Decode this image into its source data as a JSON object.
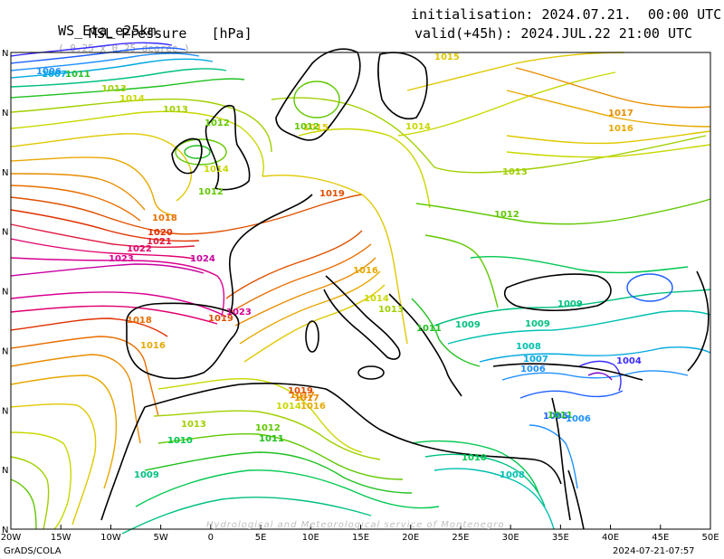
{
  "header": {
    "model": "WS_Eta_e25km",
    "resolution": "( 0.25 x 0.25 degree )",
    "variable": "MSL Pressure   [hPa]",
    "init": "initialisation: 2024.07.21.  00:00 UTC",
    "valid": "valid(+45h): 2024.JUL.22 21:00 UTC"
  },
  "axes": {
    "lon_labels": [
      "20W",
      "15W",
      "10W",
      "5W",
      "0",
      "5E",
      "10E",
      "15E",
      "20E",
      "25E",
      "30E",
      "35E",
      "40E",
      "45E",
      "50E"
    ],
    "lat_labels": [
      "N",
      "N",
      "N",
      "N",
      "N",
      "N",
      "N",
      "N",
      "N"
    ]
  },
  "footer": {
    "left": "GrADS/COLA",
    "right": "2024-07-21-07:57",
    "credit": "Hydrological and Meteorological service of Montenegro"
  },
  "colors": {
    "c1003": "#7a00c8",
    "c1004": "#3b2cff",
    "c1005": "#2060ff",
    "c1006": "#1e90ff",
    "c1007": "#00a8e0",
    "c1008": "#00c0b0",
    "c1009": "#00c080",
    "c1010": "#00c850",
    "c1011": "#20c020",
    "c1012": "#60c800",
    "c1013": "#a0d000",
    "c1014": "#c8d800",
    "c1015": "#e0c800",
    "c1016": "#e8a800",
    "c1017": "#e88c00",
    "c1018": "#e86e00",
    "c1019": "#e05000",
    "c1020": "#e03000",
    "c1021": "#e01840",
    "c1022": "#e00070",
    "c1023": "#d80090",
    "c1024": "#c800a0",
    "land": "#000000"
  },
  "isobar_labels": [
    {
      "text": "1006",
      "level": 1006
    },
    {
      "text": "1007",
      "level": 1007
    },
    {
      "text": "1011",
      "level": 1011
    },
    {
      "text": "1013",
      "level": 1013
    },
    {
      "text": "1014",
      "level": 1014
    },
    {
      "text": "1013",
      "level": 1013
    },
    {
      "text": "1012",
      "level": 1012
    },
    {
      "text": "1014",
      "level": 1014
    },
    {
      "text": "1012",
      "level": 1012
    },
    {
      "text": "1015",
      "level": 1015
    },
    {
      "text": "1018",
      "level": 1018
    },
    {
      "text": "1020",
      "level": 1020
    },
    {
      "text": "1021",
      "level": 1021
    },
    {
      "text": "1022",
      "level": 1022
    },
    {
      "text": "1023",
      "level": 1023
    },
    {
      "text": "1024",
      "level": 1024
    },
    {
      "text": "1019",
      "level": 1019
    },
    {
      "text": "1016",
      "level": 1016
    },
    {
      "text": "1014",
      "level": 1014
    },
    {
      "text": "1013",
      "level": 1013
    },
    {
      "text": "1023",
      "level": 1023
    },
    {
      "text": "1018",
      "level": 1018
    },
    {
      "text": "1016",
      "level": 1016
    },
    {
      "text": "1019",
      "level": 1019
    },
    {
      "text": "1017",
      "level": 1017
    },
    {
      "text": "1014",
      "level": 1014
    },
    {
      "text": "1013",
      "level": 1013
    },
    {
      "text": "1012",
      "level": 1012
    },
    {
      "text": "1011",
      "level": 1011
    },
    {
      "text": "1010",
      "level": 1010
    },
    {
      "text": "1009",
      "level": 1009
    },
    {
      "text": "1008",
      "level": 1008
    },
    {
      "text": "1007",
      "level": 1007
    },
    {
      "text": "1006",
      "level": 1006
    },
    {
      "text": "1005",
      "level": 1005
    },
    {
      "text": "1004",
      "level": 1004
    },
    {
      "text": "1013",
      "level": 1013
    },
    {
      "text": "1012",
      "level": 1012
    },
    {
      "text": "1011",
      "level": 1011
    },
    {
      "text": "1010",
      "level": 1010
    },
    {
      "text": "1009",
      "level": 1009
    },
    {
      "text": "1008",
      "level": 1008
    },
    {
      "text": "1015",
      "level": 1015
    },
    {
      "text": "1014",
      "level": 1014
    },
    {
      "text": "1017",
      "level": 1017
    },
    {
      "text": "1016",
      "level": 1016
    },
    {
      "text": "1009",
      "level": 1009
    },
    {
      "text": "1012",
      "level": 1012
    },
    {
      "text": "1011",
      "level": 1011
    },
    {
      "text": "1019",
      "level": 1019
    },
    {
      "text": "1017",
      "level": 1017
    },
    {
      "text": "1016",
      "level": 1016
    },
    {
      "text": "1006",
      "level": 1006
    },
    {
      "text": "1009",
      "level": 1009
    }
  ]
}
